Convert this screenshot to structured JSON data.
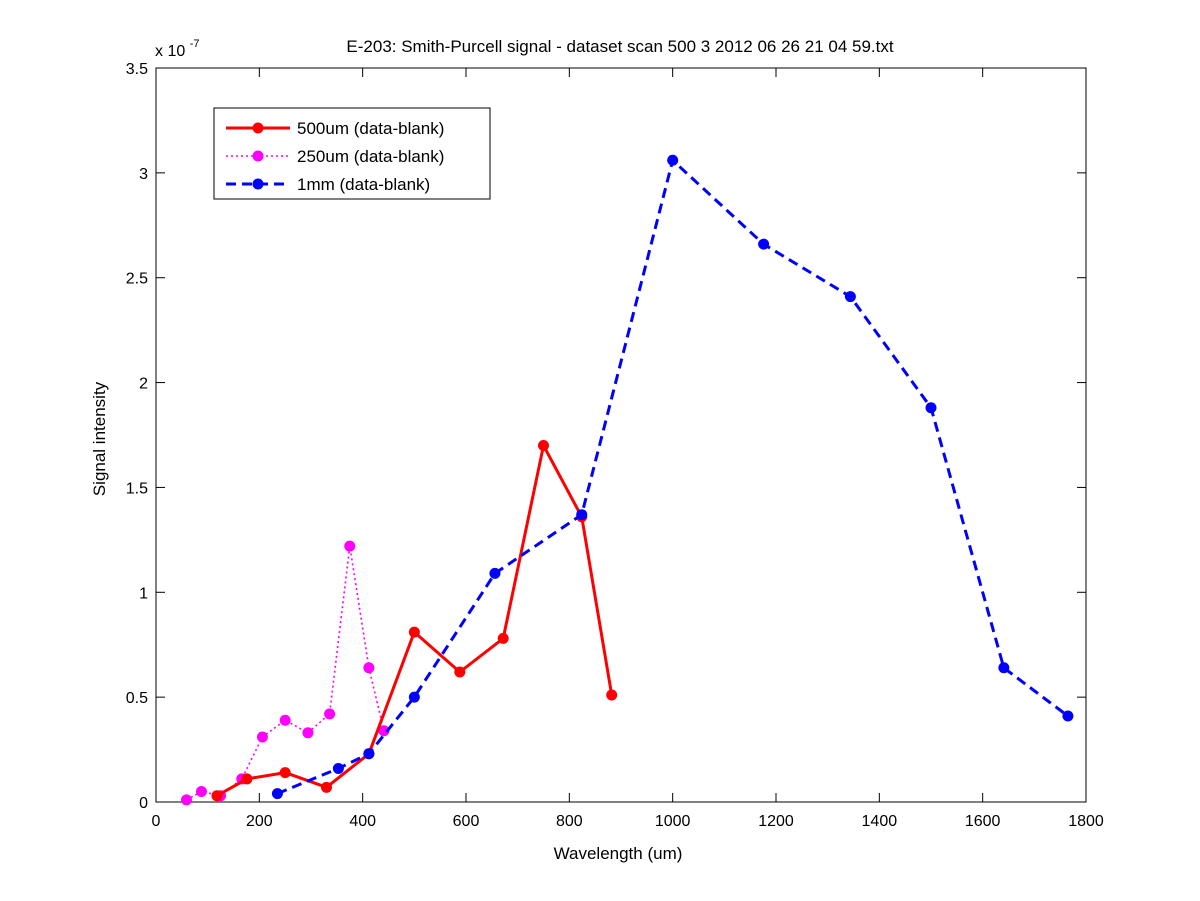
{
  "chart_data": {
    "type": "line",
    "title": "E-203: Smith-Purcell signal - dataset scan 500 3 2012 06 26 21 04 59.txt",
    "xlabel": "Wavelength (um)",
    "ylabel": "Signal intensity",
    "y_exponent_base": "x 10",
    "y_exponent_power": "-7",
    "y_multiplier": 1e-07,
    "xlim": [
      0,
      1800
    ],
    "ylim": [
      0,
      3.5
    ],
    "x_ticks": [
      0,
      200,
      400,
      600,
      800,
      1000,
      1200,
      1400,
      1600,
      1800
    ],
    "x_tick_labels": [
      "0",
      "200",
      "400",
      "600",
      "800",
      "1000",
      "1200",
      "1400",
      "1600",
      "1800"
    ],
    "y_ticks": [
      0,
      0.5,
      1,
      1.5,
      2,
      2.5,
      3,
      3.5
    ],
    "y_tick_labels": [
      "0",
      "0.5",
      "1",
      "1.5",
      "2",
      "2.5",
      "3",
      "3.5"
    ],
    "grid": false,
    "legend_position": "top-left",
    "series": [
      {
        "name": "500um (data-blank)",
        "color": "#ff0000",
        "line_style": "solid",
        "x": [
          118,
          176,
          250,
          330,
          412,
          500,
          588,
          672,
          750,
          824,
          882
        ],
        "y": [
          0.03,
          0.11,
          0.14,
          0.07,
          0.23,
          0.81,
          0.62,
          0.78,
          1.7,
          1.36,
          0.51
        ]
      },
      {
        "name": "250um (data-blank)",
        "color": "#ff00ff",
        "line_style": "dotted",
        "x": [
          59,
          88,
          125,
          166,
          206,
          250,
          294,
          336,
          375,
          412,
          441
        ],
        "y": [
          0.01,
          0.05,
          0.03,
          0.11,
          0.31,
          0.39,
          0.33,
          0.42,
          1.22,
          0.64,
          0.34
        ]
      },
      {
        "name": "1mm (data-blank)",
        "color": "#0000ff",
        "line_style": "dashed",
        "x": [
          235,
          353,
          412,
          500,
          656,
          824,
          1000,
          1176,
          1344,
          1500,
          1641,
          1765
        ],
        "y": [
          0.04,
          0.16,
          0.23,
          0.5,
          1.09,
          1.37,
          3.06,
          2.66,
          2.41,
          1.88,
          0.64,
          0.41
        ]
      }
    ]
  }
}
